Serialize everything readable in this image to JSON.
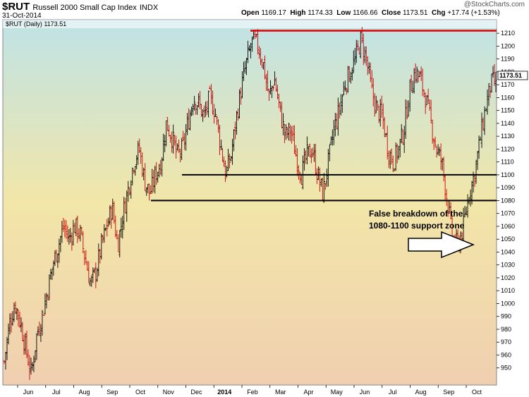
{
  "header": {
    "symbol": "$RUT",
    "name": "Russell 2000 Small Cap Index",
    "exchange": "INDX",
    "date": "31-Oct-2014",
    "open_label": "Open",
    "open": "1169.17",
    "high_label": "High",
    "high": "1174.33",
    "low_label": "Low",
    "low": "1166.66",
    "close_label": "Close",
    "close": "1173.51",
    "chg_label": "Chg",
    "chg": "+17.74 (+1.53%)",
    "logo": "@StockCharts.com"
  },
  "chart_data": {
    "type": "ohlc",
    "legend": "$RUT (Daily) 1173.51",
    "last_price_label": "1173.51",
    "ylim": [
      940,
      1215
    ],
    "y_ticks": [
      950,
      960,
      970,
      980,
      990,
      1000,
      1010,
      1020,
      1030,
      1040,
      1050,
      1060,
      1070,
      1080,
      1090,
      1100,
      1110,
      1120,
      1130,
      1140,
      1150,
      1160,
      1170,
      1180,
      1190,
      1200,
      1210
    ],
    "x_labels": [
      "Jun",
      "Jul",
      "Aug",
      "Sep",
      "Oct",
      "Nov",
      "Dec",
      "2014",
      "Feb",
      "Mar",
      "Apr",
      "May",
      "Jun",
      "Jul",
      "Aug",
      "Sep",
      "Oct"
    ],
    "price_path": [
      955,
      985,
      1000,
      985,
      965,
      945,
      975,
      990,
      1010,
      1030,
      1045,
      1060,
      1050,
      1060,
      1055,
      1035,
      1015,
      1025,
      1045,
      1060,
      1075,
      1045,
      1070,
      1090,
      1110,
      1120,
      1095,
      1085,
      1100,
      1110,
      1140,
      1130,
      1115,
      1120,
      1140,
      1160,
      1155,
      1145,
      1160,
      1150,
      1125,
      1100,
      1115,
      1145,
      1170,
      1190,
      1205,
      1200,
      1185,
      1160,
      1175,
      1150,
      1130,
      1135,
      1115,
      1100,
      1115,
      1120,
      1100,
      1085,
      1110,
      1135,
      1150,
      1170,
      1180,
      1190,
      1205,
      1190,
      1165,
      1150,
      1145,
      1120,
      1110,
      1120,
      1135,
      1165,
      1180,
      1175,
      1160,
      1140,
      1120,
      1110,
      1080,
      1050,
      1045,
      1060,
      1085,
      1100,
      1125,
      1150,
      1170,
      1173.51
    ],
    "resistance": 1212,
    "support_lines": [
      1100,
      1080
    ],
    "annotation_line1": "False breakdown of the",
    "annotation_line2": "1080-1100 support zone",
    "colors": {
      "up": "#000000",
      "down": "#cc0000",
      "resistance": "#e00000",
      "support": "#000000"
    }
  }
}
